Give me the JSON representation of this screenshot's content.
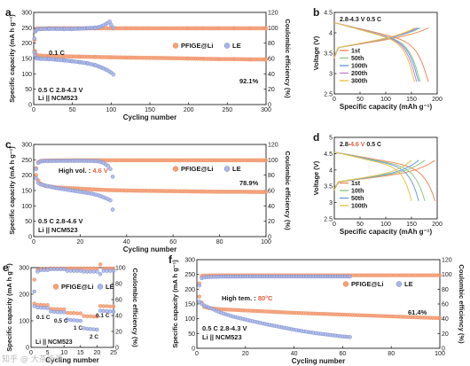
{
  "watermark": "知乎 @ 大茶能源",
  "chart_data": [
    {
      "letter": "a",
      "type": "scatter",
      "xlabel": "Cycling number",
      "ylabel": "Specific capacity (mA h g⁻¹)",
      "y2label": "Coulombic efficiency (%)",
      "xlim": [
        0,
        300
      ],
      "ylim": [
        0,
        300
      ],
      "y2lim": [
        0,
        120
      ],
      "xticks": [
        0,
        50,
        100,
        150,
        200,
        250,
        300
      ],
      "yticks": [
        0,
        50,
        100,
        150,
        200,
        250,
        300
      ],
      "y2ticks": [
        0,
        20,
        40,
        60,
        80,
        100,
        120
      ],
      "legend": [
        "PFIGE@Li",
        "LE"
      ],
      "annotations": [
        "0.1 C",
        "0.5 C   2.8-4.3 V",
        "Li || NCM523",
        "92.1%"
      ],
      "series": [
        {
          "name": "PFIGE@Li",
          "kind": "capacity",
          "x": [
            1,
            2,
            3,
            4,
            5,
            10,
            20,
            40,
            60,
            80,
            100,
            120,
            150,
            180,
            200,
            220,
            240,
            260,
            280,
            300
          ],
          "y": [
            175,
            172,
            162,
            160,
            160,
            159,
            158,
            157,
            156,
            155,
            154,
            153,
            152,
            151,
            150,
            149,
            148,
            148,
            147,
            147
          ]
        },
        {
          "name": "PFIGE@Li",
          "kind": "ce",
          "x": [
            1,
            2,
            3,
            4,
            5,
            10,
            20,
            40,
            60,
            80,
            100,
            120,
            150,
            180,
            200,
            220,
            240,
            260,
            280,
            300
          ],
          "y": [
            84,
            96,
            98,
            99,
            99,
            99,
            99.3,
            99.3,
            99.3,
            99.3,
            99.3,
            99.3,
            99.3,
            99.3,
            99.3,
            99.3,
            99.3,
            99.3,
            99.3,
            99.3
          ]
        },
        {
          "name": "LE",
          "kind": "capacity",
          "x": [
            1,
            2,
            3,
            4,
            5,
            10,
            20,
            30,
            40,
            50,
            60,
            70,
            80,
            85,
            90,
            95,
            100,
            103
          ],
          "y": [
            170,
            160,
            152,
            151,
            150,
            149,
            148,
            146,
            144,
            141,
            138,
            134,
            128,
            123,
            118,
            112,
            104,
            98
          ]
        },
        {
          "name": "LE",
          "kind": "ce",
          "x": [
            1,
            2,
            3,
            5,
            10,
            20,
            30,
            40,
            50,
            60,
            70,
            80,
            85,
            90,
            95,
            98,
            100,
            103
          ],
          "y": [
            86,
            95,
            97,
            98,
            98.5,
            98.7,
            98.7,
            98.5,
            98.5,
            99,
            99.5,
            100,
            101,
            103,
            106,
            108,
            104,
            100
          ]
        }
      ]
    },
    {
      "letter": "b",
      "type": "line",
      "xlabel": "Specific capacity (mAh g⁻¹)",
      "ylabel": "Voltage (V)",
      "xlim": [
        0,
        200
      ],
      "ylim": [
        2.5,
        4.5
      ],
      "xticks": [
        0,
        50,
        100,
        150,
        200
      ],
      "yticks": [
        2.5,
        3.0,
        3.5,
        4.0,
        4.5
      ],
      "header": "2.8-4.3 V    0.5 C",
      "legend": [
        "1st",
        "50th",
        "100th",
        "200th",
        "300th"
      ],
      "series": [
        {
          "name": "1st",
          "color": "#ef8a5a",
          "capacity": 183
        },
        {
          "name": "50th",
          "color": "#8fc88a",
          "capacity": 167
        },
        {
          "name": "100th",
          "color": "#6a9ed8",
          "capacity": 164
        },
        {
          "name": "200th",
          "color": "#c487d4",
          "capacity": 160
        },
        {
          "name": "300th",
          "color": "#e6c44a",
          "capacity": 156
        }
      ]
    },
    {
      "letter": "c",
      "type": "scatter",
      "xlabel": "Cycling number",
      "ylabel": "Specific capacity (mA h g⁻¹)",
      "y2label": "Coulombic efficiency (%)",
      "xlim": [
        0,
        100
      ],
      "ylim": [
        0,
        300
      ],
      "y2lim": [
        0,
        120
      ],
      "xticks": [
        0,
        20,
        40,
        60,
        80,
        100
      ],
      "yticks": [
        0,
        50,
        100,
        150,
        200,
        250,
        300
      ],
      "y2ticks": [
        0,
        20,
        40,
        60,
        80,
        100,
        120
      ],
      "legend": [
        "PFIGE@Li",
        "LE"
      ],
      "annotations": [
        "High vol. :",
        "4.6 V",
        "0.5 C   2.8-4.6 V",
        "Li || NCM523",
        "78.9%"
      ],
      "series": [
        {
          "name": "PFIGE@Li",
          "kind": "capacity",
          "x": [
            1,
            2,
            3,
            5,
            10,
            20,
            30,
            40,
            50,
            60,
            70,
            80,
            90,
            100
          ],
          "y": [
            200,
            183,
            172,
            165,
            160,
            156,
            152,
            150,
            149,
            148,
            147,
            146,
            146,
            145
          ]
        },
        {
          "name": "PFIGE@Li",
          "kind": "ce",
          "x": [
            1,
            2,
            3,
            5,
            10,
            20,
            30,
            40,
            50,
            60,
            70,
            80,
            90,
            100
          ],
          "y": [
            89,
            97,
            98.5,
            99,
            99.2,
            99.4,
            99.4,
            99.4,
            99.4,
            99.4,
            99.4,
            99.4,
            99.4,
            99.4
          ]
        },
        {
          "name": "LE",
          "kind": "capacity",
          "x": [
            1,
            2,
            3,
            5,
            10,
            15,
            20,
            25,
            28,
            30,
            32,
            33,
            34
          ],
          "y": [
            190,
            175,
            170,
            166,
            158,
            152,
            146,
            140,
            134,
            128,
            122,
            118,
            88
          ]
        },
        {
          "name": "LE",
          "kind": "ce",
          "x": [
            1,
            2,
            3,
            5,
            10,
            15,
            20,
            25,
            28,
            30,
            32,
            33,
            34
          ],
          "y": [
            88,
            96,
            98,
            98.5,
            98.7,
            98.8,
            98.8,
            98.6,
            98,
            96,
            92,
            88,
            78
          ]
        }
      ]
    },
    {
      "letter": "d",
      "type": "line",
      "xlabel": "Specific capacity (mAh g⁻¹)",
      "ylabel": "Voltage (V)",
      "xlim": [
        0,
        200
      ],
      "ylim": [
        2.5,
        5.0
      ],
      "xticks": [
        0,
        50,
        100,
        150,
        200
      ],
      "yticks": [
        2.5,
        3.0,
        3.5,
        4.0,
        4.5,
        5.0
      ],
      "header_parts": [
        "2.8-",
        "4.6 V",
        "0.5 C"
      ],
      "legend": [
        "1st",
        "10th",
        "50th",
        "100th"
      ],
      "series": [
        {
          "name": "1st",
          "color": "#ef8a5a",
          "capacity": 196
        },
        {
          "name": "10th",
          "color": "#8fc88a",
          "capacity": 176
        },
        {
          "name": "50th",
          "color": "#6a9ed8",
          "capacity": 164
        },
        {
          "name": "100th",
          "color": "#e6c44a",
          "capacity": 150
        }
      ]
    },
    {
      "letter": "e",
      "type": "scatter",
      "xlabel": "Cycling number",
      "ylabel": "Specific capacity (mA h g⁻¹)",
      "y2label": "Coulombic efficiency (%)",
      "xlim": [
        0,
        25
      ],
      "ylim": [
        0,
        300
      ],
      "y2lim": [
        0,
        100
      ],
      "xticks": [
        0,
        5,
        10,
        15,
        20,
        25
      ],
      "yticks": [
        0,
        100,
        200,
        300
      ],
      "y2ticks": [
        0,
        20,
        40,
        60,
        80,
        100
      ],
      "legend": [
        "PFIGE@Li",
        "LE"
      ],
      "annotations": [
        "0.1 C",
        "0.5 C",
        "1 C",
        "2 C",
        "0.1 C",
        "Li || NCM523"
      ],
      "series": [
        {
          "name": "PFIGE@Li",
          "kind": "capacity",
          "x": [
            1,
            2,
            3,
            4,
            5,
            6,
            7,
            8,
            9,
            10,
            11,
            12,
            13,
            14,
            15,
            16,
            17,
            18,
            19,
            20,
            21,
            22,
            23,
            24,
            25
          ],
          "y": [
            165,
            160,
            160,
            159,
            159,
            145,
            144,
            144,
            143,
            143,
            130,
            129,
            129,
            128,
            128,
            118,
            117,
            117,
            116,
            116,
            156,
            155,
            155,
            154,
            154
          ]
        },
        {
          "name": "LE",
          "kind": "capacity",
          "x": [
            1,
            2,
            3,
            4,
            5,
            6,
            7,
            8,
            9,
            10,
            11,
            12,
            13,
            14,
            15,
            16,
            17,
            18,
            19,
            20,
            21,
            22,
            23,
            24,
            25
          ],
          "y": [
            155,
            150,
            149,
            149,
            148,
            135,
            134,
            133,
            132,
            132,
            105,
            103,
            102,
            101,
            100,
            72,
            70,
            69,
            68,
            67,
            138,
            137,
            136,
            136,
            135
          ]
        },
        {
          "name": "PFIGE@Li",
          "kind": "ce",
          "x": [
            1,
            2,
            3,
            4,
            5,
            6,
            7,
            8,
            9,
            10,
            11,
            12,
            13,
            14,
            15,
            16,
            17,
            18,
            19,
            20,
            21,
            22,
            23,
            24,
            25
          ],
          "y": [
            85,
            97,
            98,
            98,
            98,
            99,
            99,
            99,
            99,
            99,
            99,
            99,
            99,
            99,
            99,
            99,
            99,
            99,
            99,
            99,
            104,
            99,
            99,
            99,
            99
          ]
        },
        {
          "name": "LE",
          "kind": "ce",
          "x": [
            1,
            2,
            3,
            4,
            5,
            6,
            7,
            8,
            9,
            10,
            11,
            12,
            13,
            14,
            15,
            16,
            17,
            18,
            19,
            20,
            21,
            22,
            23,
            24,
            25
          ],
          "y": [
            70,
            95,
            97,
            97,
            97,
            98,
            98,
            98,
            98,
            98,
            96,
            96,
            96,
            96,
            96,
            95,
            95,
            95,
            95,
            95,
            92,
            96,
            96,
            96,
            96
          ]
        }
      ]
    },
    {
      "letter": "f",
      "type": "scatter",
      "xlabel": "Cycling number",
      "ylabel": "Specific capacity (mA h g⁻¹)",
      "y2label": "Coulombic efficiency (%)",
      "xlim": [
        0,
        100
      ],
      "ylim": [
        0,
        300
      ],
      "y2lim": [
        0,
        120
      ],
      "xticks": [
        0,
        20,
        40,
        60,
        80,
        100
      ],
      "yticks": [
        0,
        50,
        100,
        150,
        200,
        250,
        300
      ],
      "y2ticks": [
        0,
        20,
        40,
        60,
        80,
        100,
        120
      ],
      "legend": [
        "PFIGE@Li",
        "LE"
      ],
      "annotations": [
        "High tem. :",
        "80°C",
        "0.5 C   2.8-4.3 V",
        "Li || NCM523",
        "61.4%"
      ],
      "series": [
        {
          "name": "PFIGE@Li",
          "kind": "capacity",
          "x": [
            1,
            2,
            3,
            5,
            10,
            20,
            30,
            40,
            50,
            60,
            70,
            80,
            90,
            100
          ],
          "y": [
            175,
            155,
            140,
            136,
            132,
            128,
            124,
            120,
            117,
            114,
            111,
            108,
            105,
            102
          ]
        },
        {
          "name": "PFIGE@Li",
          "kind": "ce",
          "x": [
            1,
            2,
            3,
            5,
            10,
            20,
            30,
            40,
            50,
            60,
            70,
            80,
            90,
            100
          ],
          "y": [
            88,
            98,
            98.5,
            98.7,
            98.8,
            98.8,
            98.8,
            98.8,
            98.8,
            98.8,
            98.8,
            98.8,
            98.8,
            98.8
          ]
        },
        {
          "name": "LE",
          "kind": "capacity",
          "x": [
            1,
            2,
            3,
            5,
            10,
            15,
            20,
            25,
            30,
            35,
            40,
            45,
            50,
            55,
            60,
            63
          ],
          "y": [
            158,
            150,
            145,
            138,
            120,
            107,
            97,
            88,
            79,
            71,
            63,
            56,
            50,
            45,
            40,
            38
          ]
        },
        {
          "name": "LE",
          "kind": "ce",
          "x": [
            1,
            2,
            3,
            5,
            10,
            15,
            20,
            25,
            30,
            35,
            40,
            45,
            50,
            55,
            60,
            63
          ],
          "y": [
            85,
            95,
            96,
            96.5,
            97,
            97,
            97.2,
            97.2,
            97.2,
            97.2,
            97.2,
            97.2,
            97.2,
            97.2,
            97.2,
            97.2
          ]
        }
      ]
    }
  ]
}
